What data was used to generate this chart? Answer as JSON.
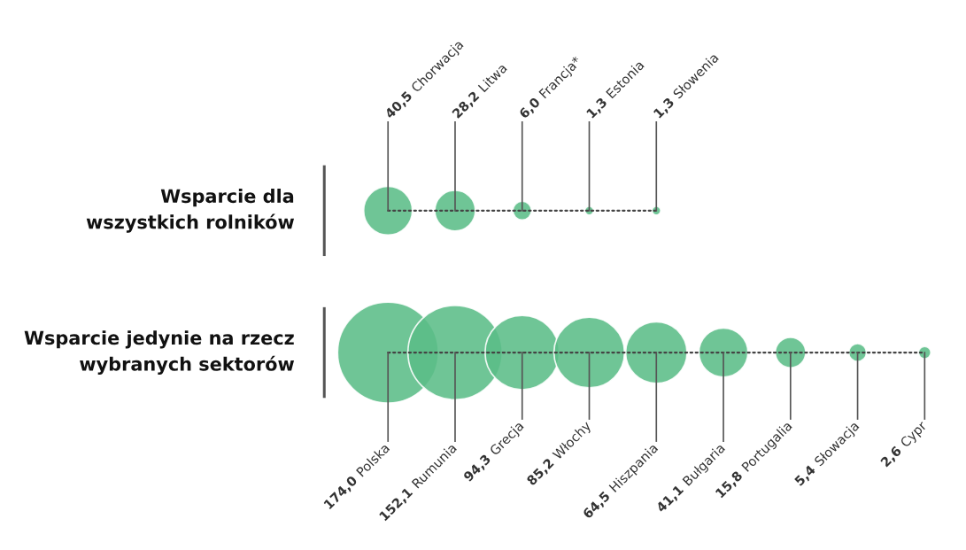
{
  "chart_data": [
    {
      "type": "other",
      "ylabel": "Wsparcie dla\nwszystkich rolników",
      "categories": [
        "Chorwacja",
        "Litwa",
        "Francja*",
        "Estonia",
        "Słowenia"
      ],
      "values": [
        40.5,
        28.2,
        6.0,
        1.3,
        1.3
      ],
      "value_labels": [
        "40,5",
        "28,2",
        "6,0",
        "1,3",
        "1,3"
      ],
      "color": "#5bbd88"
    },
    {
      "type": "other",
      "ylabel": "Wsparcie jedynie na rzecz\nwybranych sektorów",
      "categories": [
        "Polska",
        "Rumunia",
        "Grecja",
        "Włochy",
        "Hiszpania",
        "Bułgaria",
        "Portugalia",
        "Słowacja",
        "Cypr"
      ],
      "values": [
        174.0,
        152.1,
        94.3,
        85.2,
        64.5,
        41.1,
        15.8,
        5.4,
        2.6
      ],
      "value_labels": [
        "174,0",
        "152,1",
        "94,3",
        "85,2",
        "64,5",
        "41,1",
        "15,8",
        "5,4",
        "2,6"
      ],
      "color": "#5bbd88"
    }
  ]
}
